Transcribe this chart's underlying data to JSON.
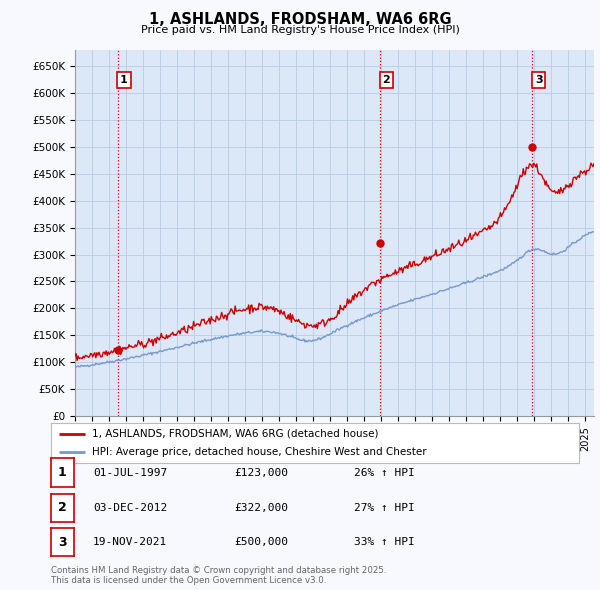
{
  "title": "1, ASHLANDS, FRODSHAM, WA6 6RG",
  "subtitle": "Price paid vs. HM Land Registry's House Price Index (HPI)",
  "ylabel_ticks": [
    "£0",
    "£50K",
    "£100K",
    "£150K",
    "£200K",
    "£250K",
    "£300K",
    "£350K",
    "£400K",
    "£450K",
    "£500K",
    "£550K",
    "£600K",
    "£650K"
  ],
  "ytick_values": [
    0,
    50000,
    100000,
    150000,
    200000,
    250000,
    300000,
    350000,
    400000,
    450000,
    500000,
    550000,
    600000,
    650000
  ],
  "ylim": [
    0,
    680000
  ],
  "xlim_start": 1995.0,
  "xlim_end": 2025.5,
  "purchase_dates": [
    1997.5,
    2012.92,
    2021.88
  ],
  "purchase_prices": [
    123000,
    322000,
    500000
  ],
  "purchase_labels": [
    "1",
    "2",
    "3"
  ],
  "vline_color": "#cc0000",
  "vline_style": ":",
  "hpi_line_color": "#7799cc",
  "price_line_color": "#cc0000",
  "legend_label_price": "1, ASHLANDS, FRODSHAM, WA6 6RG (detached house)",
  "legend_label_hpi": "HPI: Average price, detached house, Cheshire West and Chester",
  "table_rows": [
    {
      "num": "1",
      "date": "01-JUL-1997",
      "price": "£123,000",
      "change": "26% ↑ HPI"
    },
    {
      "num": "2",
      "date": "03-DEC-2012",
      "price": "£322,000",
      "change": "27% ↑ HPI"
    },
    {
      "num": "3",
      "date": "19-NOV-2021",
      "price": "£500,000",
      "change": "33% ↑ HPI"
    }
  ],
  "footnote": "Contains HM Land Registry data © Crown copyright and database right 2025.\nThis data is licensed under the Open Government Licence v3.0.",
  "bg_color": "#f8f8ff",
  "plot_bg_color": "#dce8f8",
  "grid_color": "#b8cce8"
}
